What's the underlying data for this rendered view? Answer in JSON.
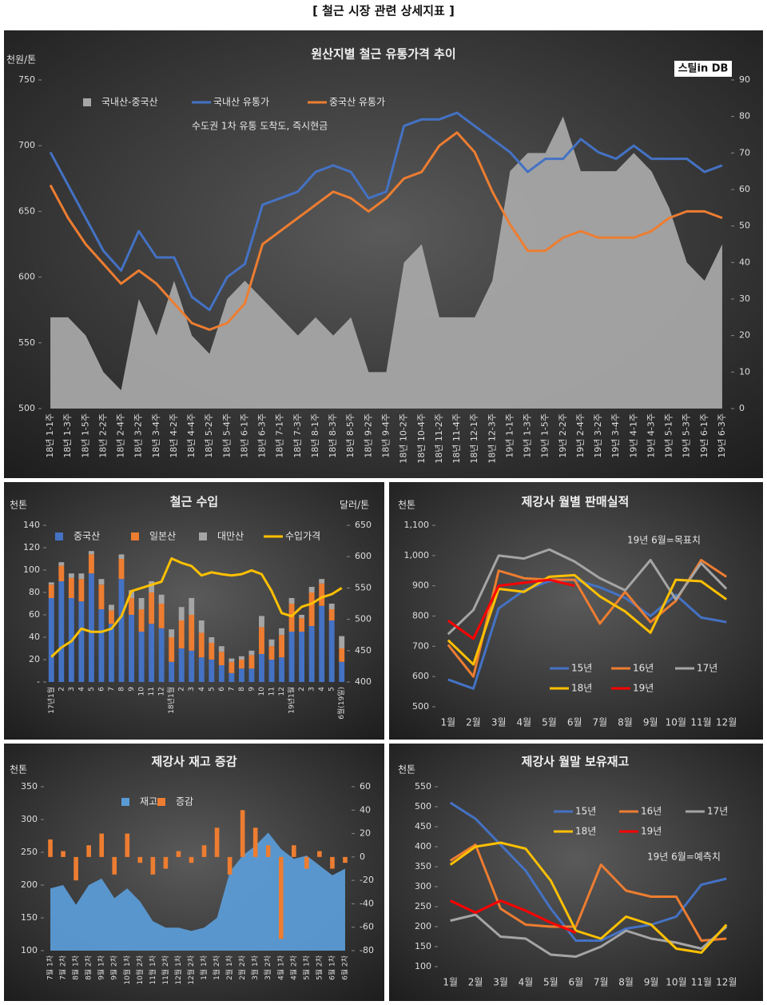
{
  "title": "[ 철근 시장 관련 상세지표 ]",
  "chart_data": [
    {
      "type": "combo",
      "title": "원산지별 철근 유통가격 추이",
      "ylabel": "천원/톤",
      "logo": "스틸in DB",
      "annotation": "수도권 1차 유통 도착도, 즉시현금",
      "categories": [
        "18년 1-1주",
        "18년 1-3주",
        "18년 1-5주",
        "18년 2-2주",
        "18년 2-4주",
        "18년 3-2주",
        "18년 3-4주",
        "18년 4-2주",
        "18년 4-4주",
        "18년 5-2주",
        "18년 5-4주",
        "18년 6-1주",
        "18년 6-3주",
        "18년 7-1주",
        "18년 7-3주",
        "18년 8-1주",
        "18년 8-3주",
        "18년 8-5주",
        "18년 9-2주",
        "18년 9-4주",
        "18년 10-2주",
        "18년 10-4주",
        "18년 11-2주",
        "18년 11-4주",
        "18년 12-1주",
        "18년 12-3주",
        "19년 1-1주",
        "19년 1-3주",
        "19년 1-5주",
        "19년 2-2주",
        "19년 2-4주",
        "19년 3-2주",
        "19년 3-4주",
        "19년 4-1주",
        "19년 4-3주",
        "19년 5-1주",
        "19년 5-3주",
        "19년 6-1주",
        "19년 6-3주"
      ],
      "ylim": [
        500,
        750
      ],
      "yticks": [
        500,
        550,
        600,
        650,
        700,
        750
      ],
      "y2lim": [
        0,
        90
      ],
      "y2ticks": [
        0,
        10,
        20,
        30,
        40,
        50,
        60,
        70,
        80,
        90
      ],
      "series": [
        {
          "name": "국내산-중국산",
          "type": "area",
          "axis": "y2",
          "color": "#a6a6a6",
          "values": [
            25,
            25,
            20,
            10,
            5,
            30,
            20,
            35,
            20,
            15,
            30,
            35,
            30,
            25,
            20,
            25,
            20,
            25,
            10,
            10,
            40,
            45,
            25,
            25,
            25,
            35,
            65,
            70,
            70,
            80,
            65,
            65,
            65,
            70,
            65,
            55,
            40,
            35,
            45
          ]
        },
        {
          "name": "국내산 유통가",
          "type": "line",
          "color": "#4472c4",
          "values": [
            695,
            670,
            645,
            620,
            605,
            635,
            615,
            615,
            585,
            575,
            600,
            610,
            655,
            660,
            665,
            680,
            685,
            680,
            660,
            665,
            715,
            720,
            720,
            725,
            715,
            705,
            695,
            680,
            690,
            690,
            705,
            695,
            690,
            700,
            690,
            690,
            690,
            680,
            685
          ]
        },
        {
          "name": "중국산 유통가",
          "type": "line",
          "color": "#ed7d31",
          "values": [
            670,
            645,
            625,
            610,
            595,
            605,
            595,
            580,
            565,
            560,
            565,
            580,
            625,
            635,
            645,
            655,
            665,
            660,
            650,
            660,
            675,
            680,
            700,
            710,
            695,
            665,
            640,
            620,
            620,
            630,
            635,
            630,
            630,
            630,
            635,
            645,
            650,
            650,
            645
          ]
        }
      ]
    },
    {
      "type": "combo",
      "title": "철근 수입",
      "ylabel": "천톤",
      "y2label": "달러/톤",
      "stacked": true,
      "categories": [
        "17년1월",
        "2",
        "3",
        "4",
        "5",
        "6",
        "7",
        "8",
        "9",
        "10",
        "11",
        "12",
        "18년1월",
        "2",
        "3",
        "4",
        "5",
        "6",
        "7",
        "8",
        "9",
        "10",
        "11",
        "12",
        "19년1월",
        "2",
        "3",
        "4",
        "5",
        "6월(19일)"
      ],
      "ylim": [
        0,
        140
      ],
      "yticks": [
        {
          "value": 0,
          "label": "-"
        },
        20,
        40,
        60,
        80,
        100,
        120,
        140
      ],
      "y2lim": [
        400,
        650
      ],
      "y2ticks": [
        400,
        450,
        500,
        550,
        600,
        650
      ],
      "series": [
        {
          "name": "중국산",
          "type": "bar",
          "color": "#4472c4",
          "values": [
            75,
            90,
            75,
            72,
            97,
            65,
            52,
            92,
            60,
            45,
            52,
            48,
            18,
            30,
            28,
            22,
            20,
            15,
            8,
            12,
            12,
            25,
            20,
            22,
            45,
            45,
            50,
            68,
            55,
            18
          ]
        },
        {
          "name": "일본산",
          "type": "bar",
          "color": "#ed7d31",
          "values": [
            12,
            14,
            18,
            20,
            17,
            22,
            12,
            18,
            15,
            20,
            28,
            22,
            22,
            25,
            32,
            22,
            15,
            12,
            10,
            8,
            12,
            24,
            12,
            20,
            25,
            12,
            30,
            20,
            10,
            12
          ]
        },
        {
          "name": "대만산",
          "type": "bar",
          "color": "#a5a5a5",
          "values": [
            2,
            3,
            4,
            5,
            3,
            5,
            5,
            4,
            7,
            10,
            10,
            8,
            7,
            12,
            15,
            11,
            5,
            5,
            3,
            3,
            4,
            10,
            6,
            6,
            5,
            3,
            5,
            4,
            5,
            11
          ]
        },
        {
          "name": "수입가격",
          "type": "line",
          "axis": "y2",
          "color": "#ffc000",
          "values": [
            440,
            455,
            465,
            485,
            480,
            480,
            485,
            505,
            545,
            550,
            555,
            560,
            597,
            590,
            585,
            570,
            575,
            572,
            570,
            572,
            578,
            572,
            545,
            510,
            505,
            520,
            525,
            535,
            540,
            550
          ]
        }
      ]
    },
    {
      "type": "line",
      "title": "제강사 월별 판매실적",
      "ylabel": "천톤",
      "annotation": "19년 6월=목표치",
      "categories": [
        "1월",
        "2월",
        "3월",
        "4월",
        "5월",
        "6월",
        "7월",
        "8월",
        "9월",
        "10월",
        "11월",
        "12월"
      ],
      "ylim": [
        500,
        1100
      ],
      "yticks": [
        500,
        600,
        700,
        800,
        900,
        {
          "value": 1000,
          "label": "1,000"
        },
        {
          "value": 1100,
          "label": "1,100"
        }
      ],
      "series": [
        {
          "name": "15년",
          "type": "line",
          "color": "#4472c4",
          "values": [
            590,
            560,
            825,
            885,
            915,
            920,
            895,
            860,
            800,
            870,
            795,
            780
          ]
        },
        {
          "name": "16년",
          "type": "line",
          "color": "#ed7d31",
          "values": [
            705,
            600,
            950,
            925,
            920,
            920,
            775,
            880,
            780,
            850,
            985,
            930
          ]
        },
        {
          "name": "17년",
          "type": "line",
          "color": "#a5a5a5",
          "values": [
            740,
            820,
            1000,
            990,
            1020,
            980,
            925,
            885,
            985,
            855,
            975,
            890
          ]
        },
        {
          "name": "18년",
          "type": "line",
          "color": "#ffc000",
          "values": [
            720,
            640,
            890,
            880,
            930,
            935,
            865,
            815,
            745,
            920,
            915,
            855
          ]
        },
        {
          "name": "19년",
          "type": "line",
          "color": "#ff0000",
          "values": [
            785,
            725,
            900,
            910,
            920,
            900,
            null,
            null,
            null,
            null,
            null,
            null
          ]
        }
      ]
    },
    {
      "type": "combo",
      "title": "제강사 재고 증감",
      "ylabel": "천톤",
      "categories": [
        "7월 1차",
        "7월 2차",
        "8월 1차",
        "8월 2차",
        "9월 1차",
        "9월 2차",
        "10월 1차",
        "10월 2차",
        "11월 1차",
        "11월 2차",
        "12월 1차",
        "12월 2차",
        "1월 1차",
        "1월 2차",
        "2월 1차",
        "2월 2차",
        "3월 1차",
        "3월 2차",
        "4월 1차",
        "4월 2차",
        "5월 1차",
        "5월 2차",
        "6월 1차",
        "6월 2차"
      ],
      "ylim": [
        100,
        350
      ],
      "yticks": [
        100,
        150,
        200,
        250,
        300,
        350
      ],
      "y2lim": [
        -80,
        60
      ],
      "y2ticks": [
        -80,
        -60,
        -40,
        -20,
        0,
        20,
        40,
        60
      ],
      "series": [
        {
          "name": "재고",
          "type": "area",
          "color": "#5b9bd5",
          "values": [
            195,
            200,
            170,
            200,
            210,
            180,
            195,
            175,
            145,
            135,
            135,
            130,
            135,
            150,
            220,
            245,
            260,
            280,
            255,
            240,
            245,
            230,
            215,
            225
          ]
        },
        {
          "name": "증감",
          "type": "bar",
          "axis": "y2",
          "color": "#ed7d31",
          "values": [
            15,
            5,
            -20,
            10,
            20,
            -15,
            20,
            -5,
            -15,
            -10,
            5,
            -5,
            10,
            25,
            -15,
            40,
            25,
            10,
            -70,
            10,
            -10,
            5,
            -10,
            -5
          ]
        }
      ]
    },
    {
      "type": "line",
      "title": "제강사 월말 보유재고",
      "ylabel": "천톤",
      "annotation": "19년 6월=예측치",
      "categories": [
        "1월",
        "2월",
        "3월",
        "4월",
        "5월",
        "6월",
        "7월",
        "8월",
        "9월",
        "10월",
        "11월",
        "12월"
      ],
      "ylim": [
        100,
        550
      ],
      "yticks": [
        100,
        150,
        200,
        250,
        300,
        350,
        400,
        450,
        500,
        550
      ],
      "series": [
        {
          "name": "15년",
          "type": "line",
          "color": "#4472c4",
          "values": [
            510,
            470,
            405,
            340,
            245,
            165,
            165,
            195,
            205,
            225,
            305,
            320
          ]
        },
        {
          "name": "16년",
          "type": "line",
          "color": "#ed7d31",
          "values": [
            365,
            405,
            245,
            205,
            200,
            200,
            355,
            290,
            275,
            275,
            165,
            170
          ]
        },
        {
          "name": "17년",
          "type": "line",
          "color": "#a5a5a5",
          "values": [
            215,
            230,
            175,
            170,
            130,
            125,
            150,
            190,
            170,
            160,
            145,
            200
          ]
        },
        {
          "name": "18년",
          "type": "line",
          "color": "#ffc000",
          "values": [
            355,
            400,
            410,
            395,
            315,
            190,
            170,
            225,
            205,
            145,
            135,
            205
          ]
        },
        {
          "name": "19년",
          "type": "line",
          "color": "#ff0000",
          "values": [
            265,
            235,
            265,
            240,
            210,
            185,
            null,
            null,
            null,
            null,
            null,
            null
          ]
        }
      ]
    }
  ]
}
